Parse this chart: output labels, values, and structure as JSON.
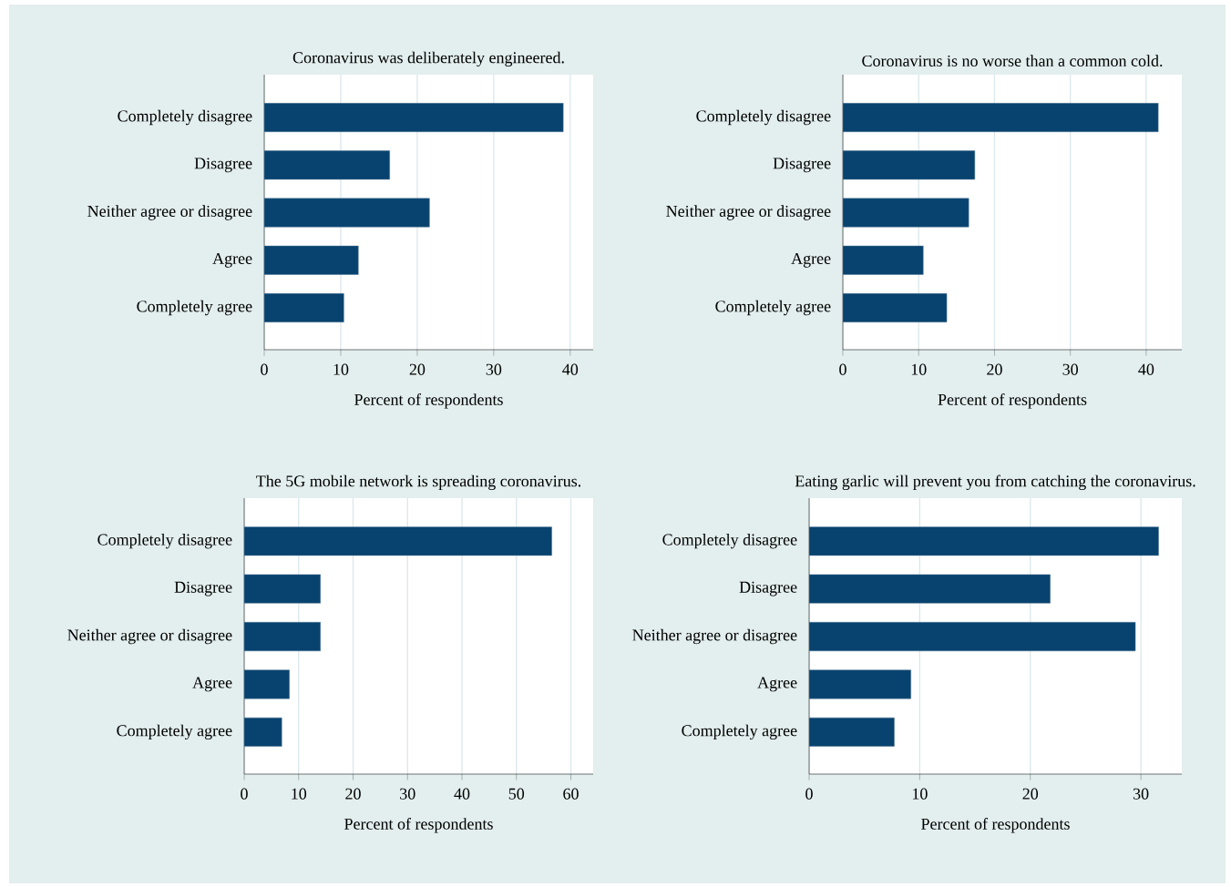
{
  "chart_data": [
    {
      "type": "bar",
      "orientation": "horizontal",
      "title": "Coronavirus was deliberately engineered.",
      "xlabel": "Percent of respondents",
      "categories": [
        "Completely disagree",
        "Disagree",
        "Neither agree or disagree",
        "Agree",
        "Completely agree"
      ],
      "values": [
        39.1,
        16.4,
        21.6,
        12.3,
        10.4
      ],
      "color": "#08426e",
      "xlim": [
        0,
        43
      ],
      "xticks": [
        0,
        10,
        20,
        30,
        40
      ],
      "grid": "x"
    },
    {
      "type": "bar",
      "orientation": "horizontal",
      "title": "Coronavirus is no worse than a common cold.",
      "xlabel": "Percent of respondents",
      "categories": [
        "Completely disagree",
        "Disagree",
        "Neither agree or disagree",
        "Agree",
        "Completely agree"
      ],
      "values": [
        41.6,
        17.4,
        16.6,
        10.6,
        13.7
      ],
      "color": "#08426e",
      "xlim": [
        0,
        44.7
      ],
      "xticks": [
        0,
        10,
        20,
        30,
        40
      ],
      "grid": "x"
    },
    {
      "type": "bar",
      "orientation": "horizontal",
      "title": "The 5G mobile network is spreading coronavirus.",
      "xlabel": "Percent of respondents",
      "categories": [
        "Completely disagree",
        "Disagree",
        "Neither agree or disagree",
        "Agree",
        "Completely agree"
      ],
      "values": [
        56.5,
        14.0,
        14.0,
        8.3,
        6.9
      ],
      "color": "#08426e",
      "xlim": [
        0,
        64.1
      ],
      "xticks": [
        0,
        10,
        20,
        30,
        40,
        50,
        60
      ],
      "grid": "x"
    },
    {
      "type": "bar",
      "orientation": "horizontal",
      "title": "Eating garlic will prevent you from catching the coronavirus.",
      "xlabel": "Percent of respondents",
      "categories": [
        "Completely disagree",
        "Disagree",
        "Neither agree or disagree",
        "Agree",
        "Completely agree"
      ],
      "values": [
        31.6,
        21.8,
        29.5,
        9.2,
        7.7
      ],
      "color": "#08426e",
      "xlim": [
        0,
        33.7
      ],
      "xticks": [
        0,
        10,
        20,
        30
      ],
      "grid": "x"
    }
  ]
}
